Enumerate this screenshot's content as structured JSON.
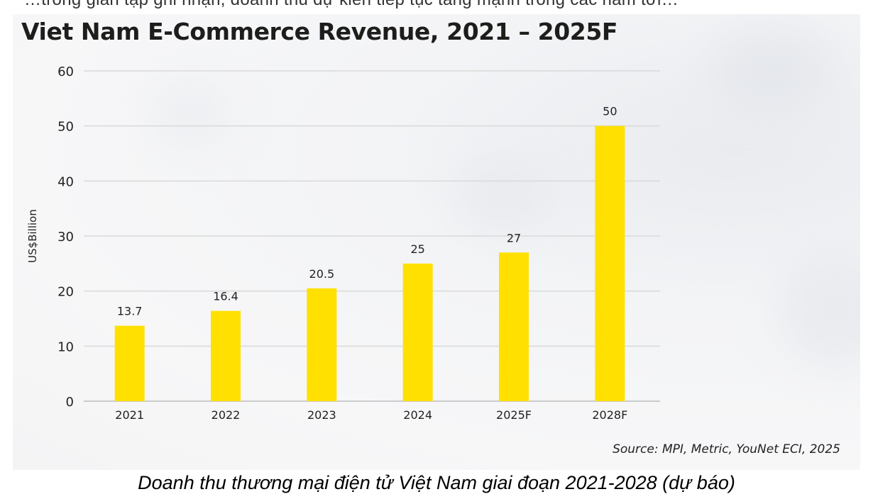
{
  "header_text": "…trong gian tạp ghi nhận, doanh thu dự kiến tiếp tục tăng mạnh trong các năm tới…",
  "chart_data": {
    "type": "bar",
    "title": "Viet Nam E-Commerce Revenue, 2021 – 2025F",
    "xlabel": "",
    "ylabel": "US$Billion",
    "categories": [
      "2021",
      "2022",
      "2023",
      "2024",
      "2025F",
      "2028F"
    ],
    "values": [
      13.7,
      16.4,
      20.5,
      25,
      27,
      50
    ],
    "value_labels": [
      "13.7",
      "16.4",
      "20.5",
      "25",
      "27",
      "50"
    ],
    "ylim": [
      0,
      60
    ],
    "yticks": [
      "0",
      "10",
      "20",
      "30",
      "40",
      "50",
      "60"
    ],
    "grid": true,
    "bar_color": "#FFE000",
    "source": "Source: MPI, Metric, YouNet ECI, 2025"
  },
  "caption": "Doanh thu thương mại điện tử Việt Nam giai đoạn 2021-2028 (dự báo)"
}
